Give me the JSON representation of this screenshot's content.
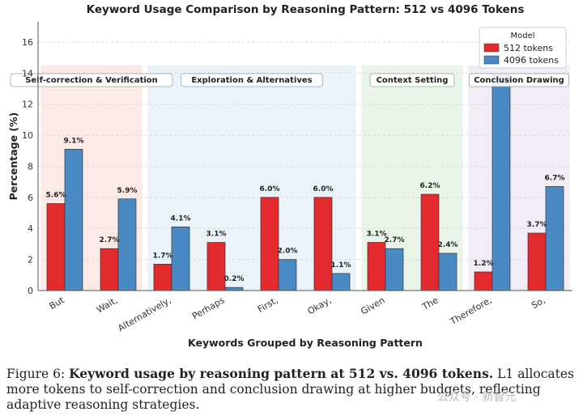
{
  "chart_data": {
    "type": "bar",
    "title": "Keyword Usage Comparison by Reasoning Pattern: 512 vs 4096 Tokens",
    "xlabel": "Keywords Grouped by Reasoning Pattern",
    "ylabel": "Percentage (%)",
    "ylim": [
      0,
      17.3
    ],
    "yticks": [
      0,
      2,
      4,
      6,
      8,
      10,
      12,
      14,
      16
    ],
    "grid": true,
    "legend": {
      "title": "Model",
      "placement": "top-right"
    },
    "categories": [
      "But",
      "Wait,",
      "Alternatively,",
      "Perhaps",
      "First,",
      "Okay,",
      "Given",
      "The",
      "Therefore,",
      "So,"
    ],
    "series": [
      {
        "name": "512 tokens",
        "color": "#e32a2e",
        "values": [
          5.6,
          2.7,
          1.7,
          3.1,
          6.0,
          6.0,
          3.1,
          6.2,
          1.2,
          3.7
        ],
        "labels": [
          "5.6%",
          "2.7%",
          "1.7%",
          "3.1%",
          "6.0%",
          "6.0%",
          "3.1%",
          "6.2%",
          "1.2%",
          "3.7%"
        ]
      },
      {
        "name": "4096 tokens",
        "color": "#4a8ac4",
        "values": [
          9.1,
          5.9,
          4.1,
          0.2,
          2.0,
          1.1,
          2.7,
          2.4,
          13.9,
          6.7
        ],
        "labels": [
          "9.1%",
          "5.9%",
          "4.1%",
          "0.2%",
          "2.0%",
          "1.1%",
          "2.7%",
          "2.4%",
          "",
          "6.7%"
        ]
      }
    ],
    "groups": [
      {
        "label": "Self-correction & Verification",
        "from": 0,
        "to": 1,
        "color": "#fbe3dd"
      },
      {
        "label": "Exploration & Alternatives",
        "from": 2,
        "to": 5,
        "color": "#e3eef8"
      },
      {
        "label": "Context Setting",
        "from": 6,
        "to": 7,
        "color": "#e3f2e3"
      },
      {
        "label": "Conclusion Drawing",
        "from": 8,
        "to": 9,
        "color": "#ece6f2"
      }
    ],
    "group_band_top": 14.5
  },
  "caption": {
    "prefix": "Figure 6: ",
    "bold": "Keyword usage by reasoning pattern at 512 vs. 4096 tokens.",
    "rest": " L1 allocates more tokens to self-correction and conclusion drawing at higher budgets, reflecting adaptive reasoning strategies."
  },
  "watermark": "公众号 · 新智元"
}
